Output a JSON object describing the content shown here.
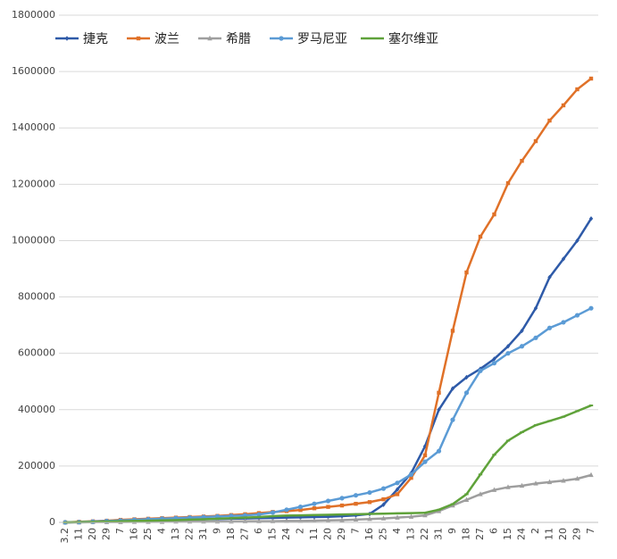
{
  "chart_data": {
    "type": "line",
    "categories": [
      "3.2",
      "11",
      "20",
      "29",
      "7",
      "16",
      "25",
      "4",
      "13",
      "22",
      "31",
      "9",
      "18",
      "27",
      "6",
      "15",
      "24",
      "2",
      "11",
      "20",
      "29",
      "7",
      "16",
      "25",
      "4",
      "13",
      "22",
      "31",
      "9",
      "18",
      "27",
      "6",
      "15",
      "24",
      "2",
      "11",
      "20",
      "29",
      "7"
    ],
    "series": [
      {
        "name": "捷克",
        "color": "#2e5aa8",
        "marker": "diamond",
        "values": [
          0,
          1000,
          2000,
          3000,
          5000,
          6000,
          7000,
          8000,
          9000,
          10000,
          11000,
          12000,
          13000,
          14000,
          15000,
          16000,
          17000,
          18000,
          19000,
          20000,
          22000,
          25000,
          30000,
          63000,
          117000,
          175000,
          270000,
          400000,
          475000,
          515000,
          545000,
          580000,
          625000,
          680000,
          760000,
          870000,
          935000,
          1000000,
          1078000
        ]
      },
      {
        "name": "波兰",
        "color": "#e07128",
        "marker": "square",
        "values": [
          0,
          2000,
          4000,
          6000,
          9000,
          11000,
          13000,
          15000,
          17000,
          19000,
          21000,
          23000,
          26000,
          29000,
          33000,
          37000,
          40000,
          44000,
          50000,
          55000,
          60000,
          66000,
          72000,
          82000,
          100000,
          158000,
          238000,
          460000,
          680000,
          887000,
          1014000,
          1093000,
          1204000,
          1283000,
          1353000,
          1426000,
          1480000,
          1537000,
          1575000
        ]
      },
      {
        "name": "希腊",
        "color": "#9e9e9e",
        "marker": "triangle",
        "values": [
          0,
          0,
          1000,
          1000,
          1000,
          2000,
          2000,
          2000,
          3000,
          3000,
          3000,
          3000,
          3000,
          4000,
          4000,
          4000,
          5000,
          5000,
          6000,
          7000,
          8000,
          10000,
          12000,
          14000,
          17000,
          20000,
          25000,
          40000,
          60000,
          80000,
          100000,
          115000,
          125000,
          130000,
          138000,
          143000,
          148000,
          155000,
          168000
        ]
      },
      {
        "name": "罗马尼亚",
        "color": "#5b9bd5",
        "marker": "circle",
        "values": [
          0,
          1000,
          3000,
          5000,
          7000,
          9000,
          11000,
          13000,
          15000,
          17000,
          19000,
          21000,
          23000,
          25000,
          28000,
          35000,
          45000,
          55000,
          66000,
          76000,
          86000,
          96000,
          106000,
          120000,
          140000,
          170000,
          215000,
          253000,
          364000,
          460000,
          538000,
          565000,
          600000,
          625000,
          655000,
          690000,
          710000,
          735000,
          760000
        ]
      },
      {
        "name": "塞尔维亚",
        "color": "#5fa23a",
        "marker": "dash",
        "values": [
          0,
          1000,
          2000,
          3000,
          4000,
          5000,
          6000,
          7000,
          8000,
          10000,
          11000,
          13000,
          15000,
          17000,
          19000,
          22000,
          24000,
          25000,
          26000,
          27000,
          28000,
          29000,
          30000,
          31000,
          32000,
          33000,
          34000,
          45000,
          65000,
          100000,
          170000,
          240000,
          290000,
          320000,
          345000,
          360000,
          375000,
          395000,
          415000
        ]
      }
    ],
    "ylim": [
      0,
      1800000
    ],
    "yticks": [
      0,
      200000,
      400000,
      600000,
      800000,
      1000000,
      1200000,
      1400000,
      1600000,
      1800000
    ],
    "grid": true,
    "legend": "top-left"
  }
}
